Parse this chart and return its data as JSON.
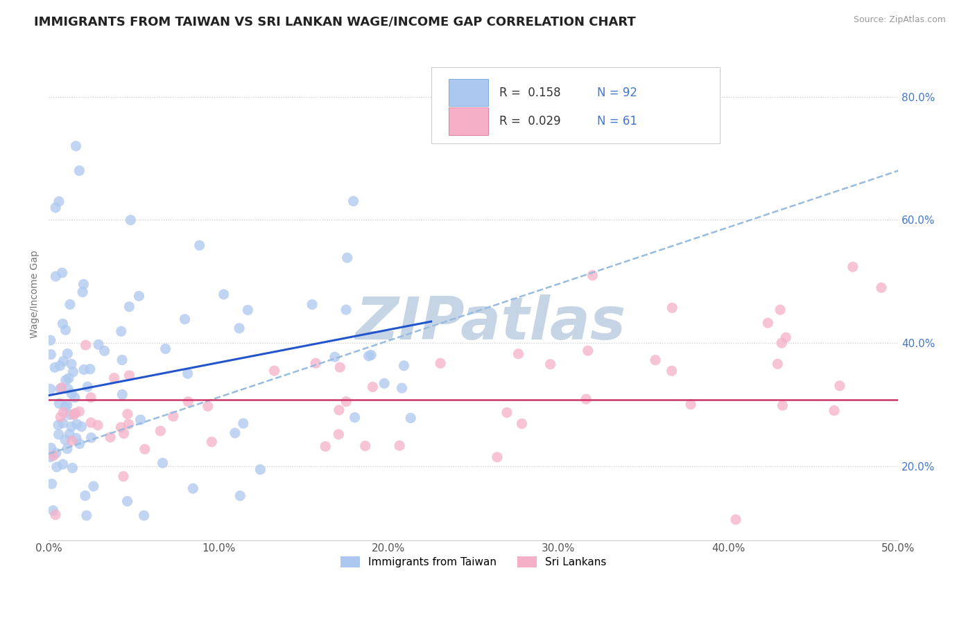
{
  "title": "IMMIGRANTS FROM TAIWAN VS SRI LANKAN WAGE/INCOME GAP CORRELATION CHART",
  "source": "Source: ZipAtlas.com",
  "ylabel": "Wage/Income Gap",
  "xlim": [
    0.0,
    0.5
  ],
  "ylim": [
    0.08,
    0.88
  ],
  "xticks": [
    0.0,
    0.1,
    0.2,
    0.3,
    0.4,
    0.5
  ],
  "xtick_labels": [
    "0.0%",
    "10.0%",
    "20.0%",
    "30.0%",
    "40.0%",
    "50.0%"
  ],
  "yticks": [
    0.2,
    0.4,
    0.6,
    0.8
  ],
  "ytick_labels": [
    "20.0%",
    "40.0%",
    "60.0%",
    "80.0%"
  ],
  "legend_items": [
    {
      "label_r": "R =  0.158",
      "label_n": "N = 92",
      "color": "#adc8f0",
      "edgecolor": "#7aaae0"
    },
    {
      "label_r": "R =  0.029",
      "label_n": "N = 61",
      "color": "#f5b0c8",
      "edgecolor": "#e080a0"
    }
  ],
  "taiwan_color": "#adc8f0",
  "srilanka_color": "#f5b0c8",
  "trend_taiwan_color": "#2255cc",
  "trend_srilanka_color": "#cc3366",
  "trend_gray_color": "#99bbdd",
  "background_color": "#ffffff",
  "grid_color": "#cccccc",
  "watermark": "ZIPatlas",
  "watermark_color": "#c5d5e5",
  "title_fontsize": 13,
  "axis_fontsize": 10,
  "tick_fontsize": 11,
  "legend_fontsize": 12,
  "right_tick_color": "#4477cc"
}
